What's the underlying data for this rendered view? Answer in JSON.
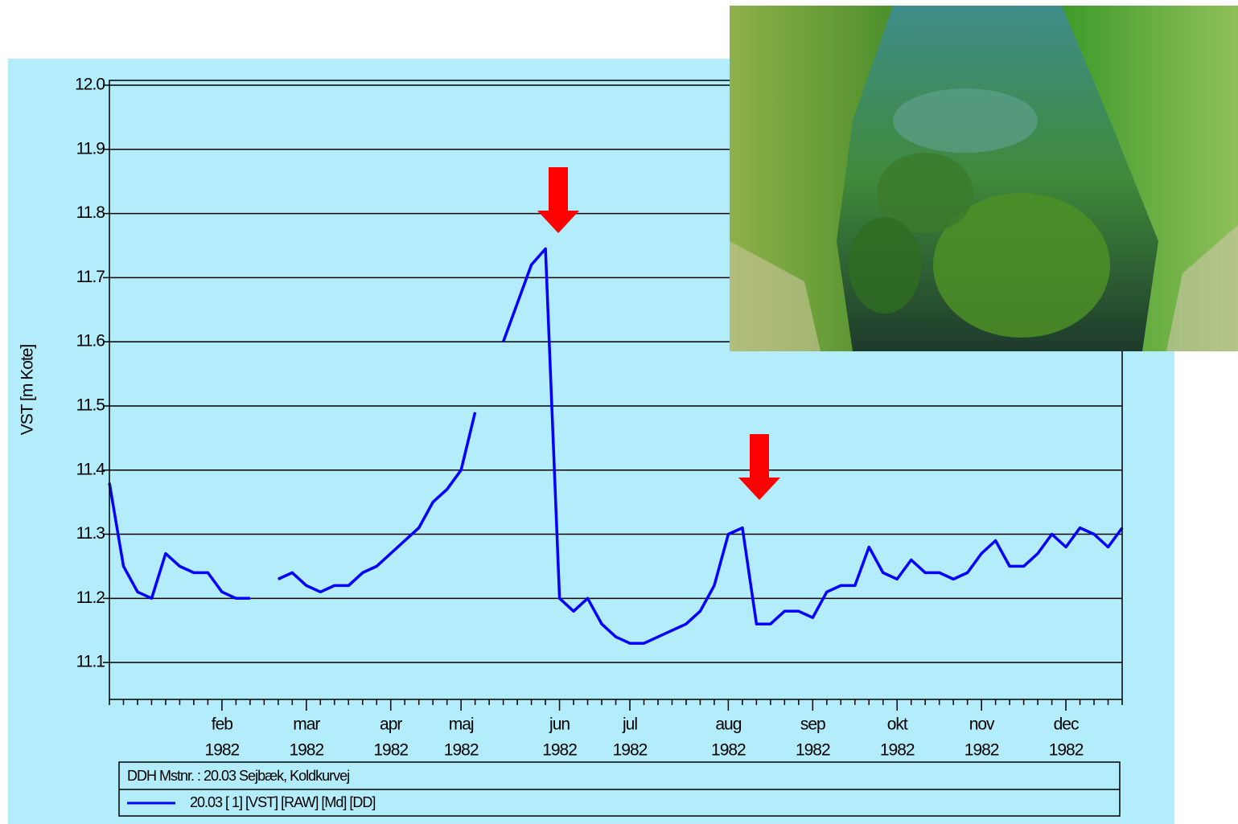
{
  "chart_data": {
    "type": "line",
    "y_label": "VST [m Kote]",
    "station": "DDH Mstnr. : 20.03 Sejbæk, Koldkurvej",
    "year": "1982",
    "categories": [
      null,
      null,
      null,
      null,
      null,
      null,
      null,
      null,
      "feb",
      null,
      null,
      null,
      null,
      null,
      "mar",
      null,
      null,
      null,
      null,
      null,
      "apr",
      null,
      null,
      null,
      null,
      "maj",
      null,
      null,
      null,
      null,
      null,
      null,
      "jun",
      null,
      null,
      null,
      null,
      "jul",
      null,
      null,
      null,
      null,
      null,
      null,
      "aug",
      null,
      null,
      null,
      null,
      null,
      "sep",
      null,
      null,
      null,
      null,
      null,
      "okt",
      null,
      null,
      null,
      null,
      null,
      "nov",
      null,
      null,
      null,
      null,
      null,
      "dec",
      null,
      null,
      null,
      null
    ],
    "series": [
      {
        "name": "20.03 [ 1] [VST] [RAW] [Md] [DD]",
        "color": "#0000ff",
        "values": [
          11.38,
          11.25,
          11.21,
          11.2,
          11.27,
          11.25,
          11.24,
          11.24,
          11.21,
          11.2,
          11.2,
          null,
          11.23,
          11.24,
          11.22,
          11.21,
          11.22,
          11.22,
          11.24,
          11.25,
          11.27,
          11.29,
          11.31,
          11.35,
          11.37,
          11.4,
          11.49,
          null,
          11.6,
          11.66,
          11.72,
          11.745,
          11.2,
          11.18,
          11.2,
          11.16,
          11.14,
          11.13,
          11.13,
          11.14,
          11.15,
          11.16,
          11.18,
          11.22,
          11.3,
          11.31,
          11.16,
          11.16,
          11.18,
          11.18,
          11.17,
          11.21,
          11.22,
          11.22,
          11.28,
          11.24,
          11.23,
          11.26,
          11.24,
          11.24,
          11.23,
          11.24,
          11.27,
          11.29,
          11.25,
          11.25,
          11.27,
          11.3,
          11.28,
          11.31,
          11.3,
          11.28,
          11.31
        ]
      }
    ],
    "ylim": [
      11.0425,
      12.0075
    ],
    "yticks": [
      11.1,
      11.2,
      11.3,
      11.4,
      11.5,
      11.6,
      11.7,
      11.8,
      11.9,
      {
        "value": 12,
        "label": "12.0"
      }
    ],
    "grid": true
  }
}
